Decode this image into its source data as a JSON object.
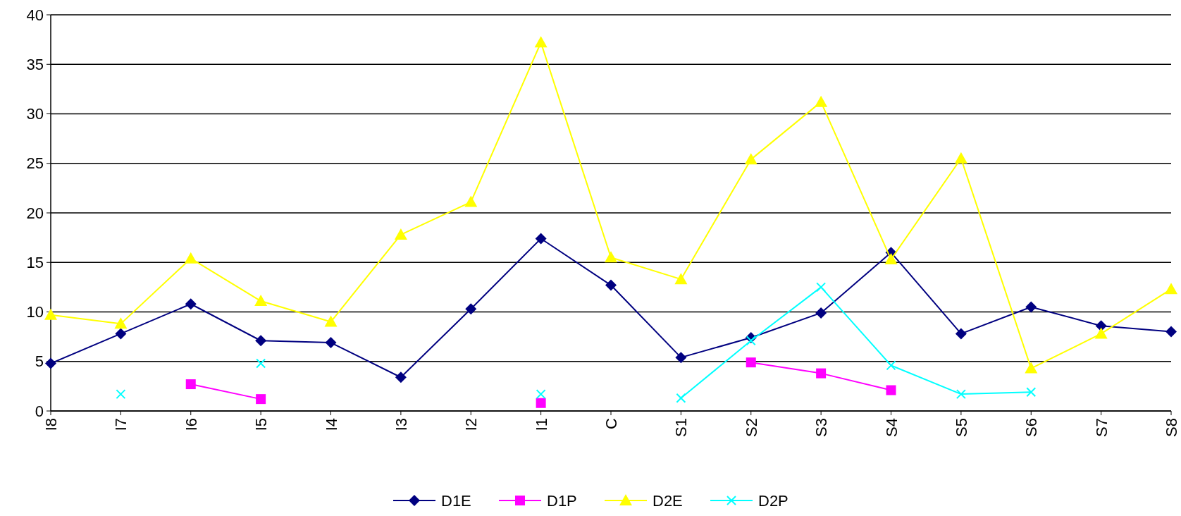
{
  "chart_data": {
    "type": "line",
    "categories": [
      "I8",
      "I7",
      "I6",
      "I5",
      "I4",
      "I3",
      "I2",
      "I1",
      "C",
      "S1",
      "S2",
      "S3",
      "S4",
      "S5",
      "S6",
      "S7",
      "S8"
    ],
    "ylim": [
      0,
      40
    ],
    "yticks": [
      0,
      5,
      10,
      15,
      20,
      25,
      30,
      35,
      40
    ],
    "grid": "y",
    "legend": "bottom",
    "series": [
      {
        "name": "D1E",
        "color": "#000080",
        "marker": "diamond",
        "values": [
          4.8,
          7.8,
          10.8,
          7.1,
          6.9,
          3.4,
          10.3,
          17.4,
          12.7,
          5.4,
          7.4,
          9.9,
          16.0,
          7.8,
          10.5,
          8.6,
          8.0
        ]
      },
      {
        "name": "D1P",
        "color": "#ff00ff",
        "marker": "square",
        "values": [
          null,
          null,
          2.7,
          1.2,
          null,
          null,
          null,
          0.8,
          null,
          null,
          4.9,
          3.8,
          2.1,
          null,
          null,
          null,
          null
        ]
      },
      {
        "name": "D2E",
        "color": "#ffff00",
        "marker": "triangle",
        "values": [
          9.7,
          8.8,
          15.4,
          11.1,
          9.0,
          17.8,
          21.1,
          37.2,
          15.5,
          13.3,
          25.4,
          31.2,
          15.3,
          25.5,
          4.3,
          7.8,
          12.3
        ]
      },
      {
        "name": "D2P",
        "color": "#00ffff",
        "marker": "cross",
        "values": [
          null,
          1.7,
          null,
          4.8,
          null,
          null,
          null,
          1.7,
          null,
          1.3,
          7.1,
          12.5,
          4.6,
          1.7,
          1.9,
          null,
          null
        ]
      }
    ]
  }
}
